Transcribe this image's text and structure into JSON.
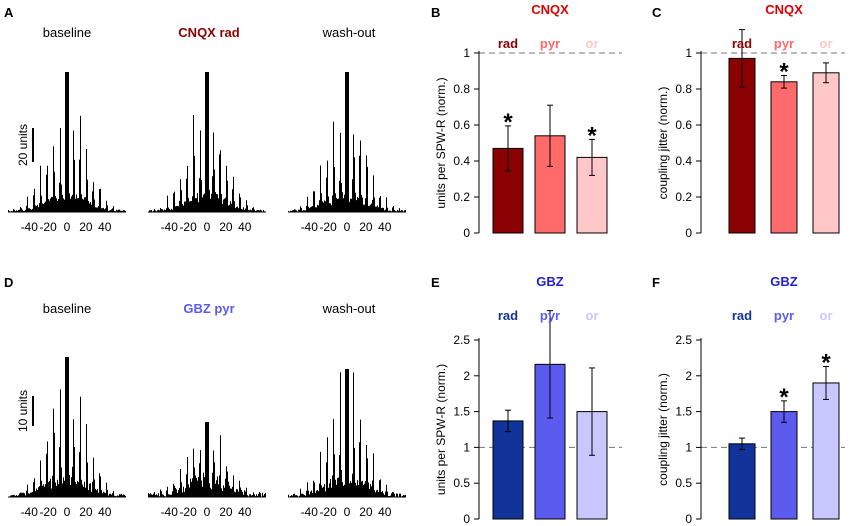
{
  "panel_letters": [
    "A",
    "B",
    "C",
    "D",
    "E",
    "F"
  ],
  "histograms": {
    "row_top": {
      "titles": [
        "baseline",
        "CNQX rad",
        "wash-out"
      ],
      "title_colors": [
        "#000000",
        "#8b0000",
        "#000000"
      ],
      "scale_label": "20 units",
      "x_ticks": [
        "-40",
        "-20",
        "0",
        "20",
        "40"
      ]
    },
    "row_bottom": {
      "titles": [
        "baseline",
        "GBZ pyr",
        "wash-out"
      ],
      "title_colors": [
        "#000000",
        "#5b5bf0",
        "#000000"
      ],
      "scale_label": "10 units",
      "x_ticks": [
        "-40",
        "-20",
        "0",
        "20",
        "40"
      ]
    }
  },
  "chart_data": [
    {
      "panel": "B",
      "type": "bar",
      "drug": "CNQX",
      "drug_color": "#e00000",
      "categories": [
        "rad",
        "pyr",
        "or"
      ],
      "category_colors": [
        "#8b0000",
        "#ff6b6b",
        "#ffc7c7"
      ],
      "values": [
        0.47,
        0.54,
        0.42
      ],
      "errors": [
        0.125,
        0.17,
        0.1
      ],
      "significant": [
        true,
        false,
        true
      ],
      "star": "*",
      "ylabel": "units per SPW-R (norm.)",
      "ylim": [
        0,
        1
      ],
      "yticks": [
        "0",
        "0.2",
        "0.4",
        "0.6",
        "0.8",
        "1"
      ],
      "reference_line": 1
    },
    {
      "panel": "C",
      "type": "bar",
      "drug": "CNQX",
      "drug_color": "#e00000",
      "categories": [
        "rad",
        "pyr",
        "or"
      ],
      "category_colors": [
        "#8b0000",
        "#ff6b6b",
        "#ffc7c7"
      ],
      "values": [
        0.97,
        0.84,
        0.89
      ],
      "errors": [
        0.16,
        0.035,
        0.055
      ],
      "significant": [
        false,
        true,
        false
      ],
      "star": "*",
      "ylabel": "coupling jitter (norm.)",
      "ylim": [
        0,
        1
      ],
      "yticks": [
        "0",
        "0.2",
        "0.4",
        "0.6",
        "0.8",
        "1"
      ],
      "reference_line": 1
    },
    {
      "panel": "E",
      "type": "bar",
      "drug": "GBZ",
      "drug_color": "#1f1fd6",
      "categories": [
        "rad",
        "pyr",
        "or"
      ],
      "category_colors": [
        "#12339a",
        "#5b5bf0",
        "#c8c8ff"
      ],
      "values": [
        1.37,
        2.16,
        1.5
      ],
      "errors": [
        0.15,
        0.75,
        0.61
      ],
      "significant": [
        false,
        false,
        false
      ],
      "star": "*",
      "ylabel": "units per SPW-R (norm.)",
      "ylim": [
        0,
        2.5
      ],
      "yticks": [
        "0",
        "0.5",
        "1",
        "1.5",
        "2",
        "2.5"
      ],
      "reference_line": 1
    },
    {
      "panel": "F",
      "type": "bar",
      "drug": "GBZ",
      "drug_color": "#1f1fd6",
      "categories": [
        "rad",
        "pyr",
        "or"
      ],
      "category_colors": [
        "#12339a",
        "#5b5bf0",
        "#c8c8ff"
      ],
      "values": [
        1.05,
        1.5,
        1.9
      ],
      "errors": [
        0.08,
        0.15,
        0.23
      ],
      "significant": [
        false,
        true,
        true
      ],
      "star": "*",
      "ylabel": "coupling jitter (norm.)",
      "ylim": [
        0,
        2.5
      ],
      "yticks": [
        "0",
        "0.5",
        "1",
        "1.5",
        "2",
        "2.5"
      ],
      "reference_line": 1
    }
  ]
}
